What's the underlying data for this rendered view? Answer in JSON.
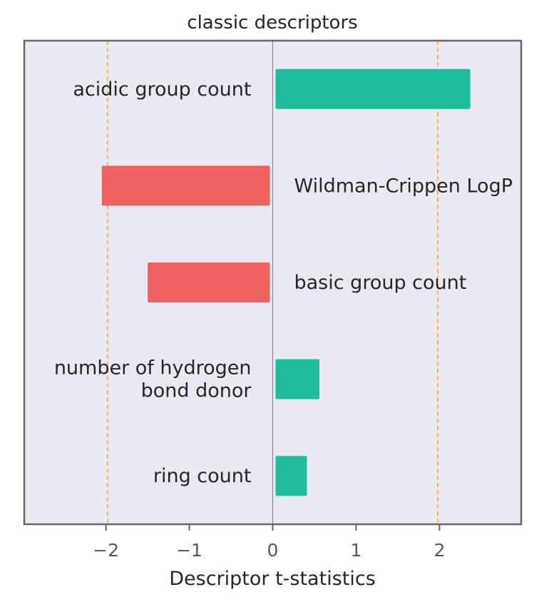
{
  "chart_data": {
    "type": "bar",
    "orientation": "horizontal",
    "title": "classic descriptors",
    "xlabel": "Descriptor t-statistics",
    "ylabel": "",
    "xlim": [
      -2.98,
      2.98
    ],
    "xticks": [
      -2,
      -1,
      0,
      1,
      2
    ],
    "xtick_labels": [
      "−2",
      "−1",
      "0",
      "1",
      "2"
    ],
    "reference_lines": [
      -1.98,
      1.98
    ],
    "reference_line_color": "#f5a742",
    "plot_background": "#e9eaf1",
    "positive_color": "#1dbd9b",
    "negative_color": "#ee6160",
    "bars": [
      {
        "label": "acidic group count",
        "value": 2.37
      },
      {
        "label": "Wildman-Crippen LogP",
        "value": -2.05
      },
      {
        "label": "basic group count",
        "value": -1.5
      },
      {
        "label": "number of hydrogen\nbond donor",
        "value": 0.56
      },
      {
        "label": "ring count",
        "value": 0.41
      }
    ]
  }
}
